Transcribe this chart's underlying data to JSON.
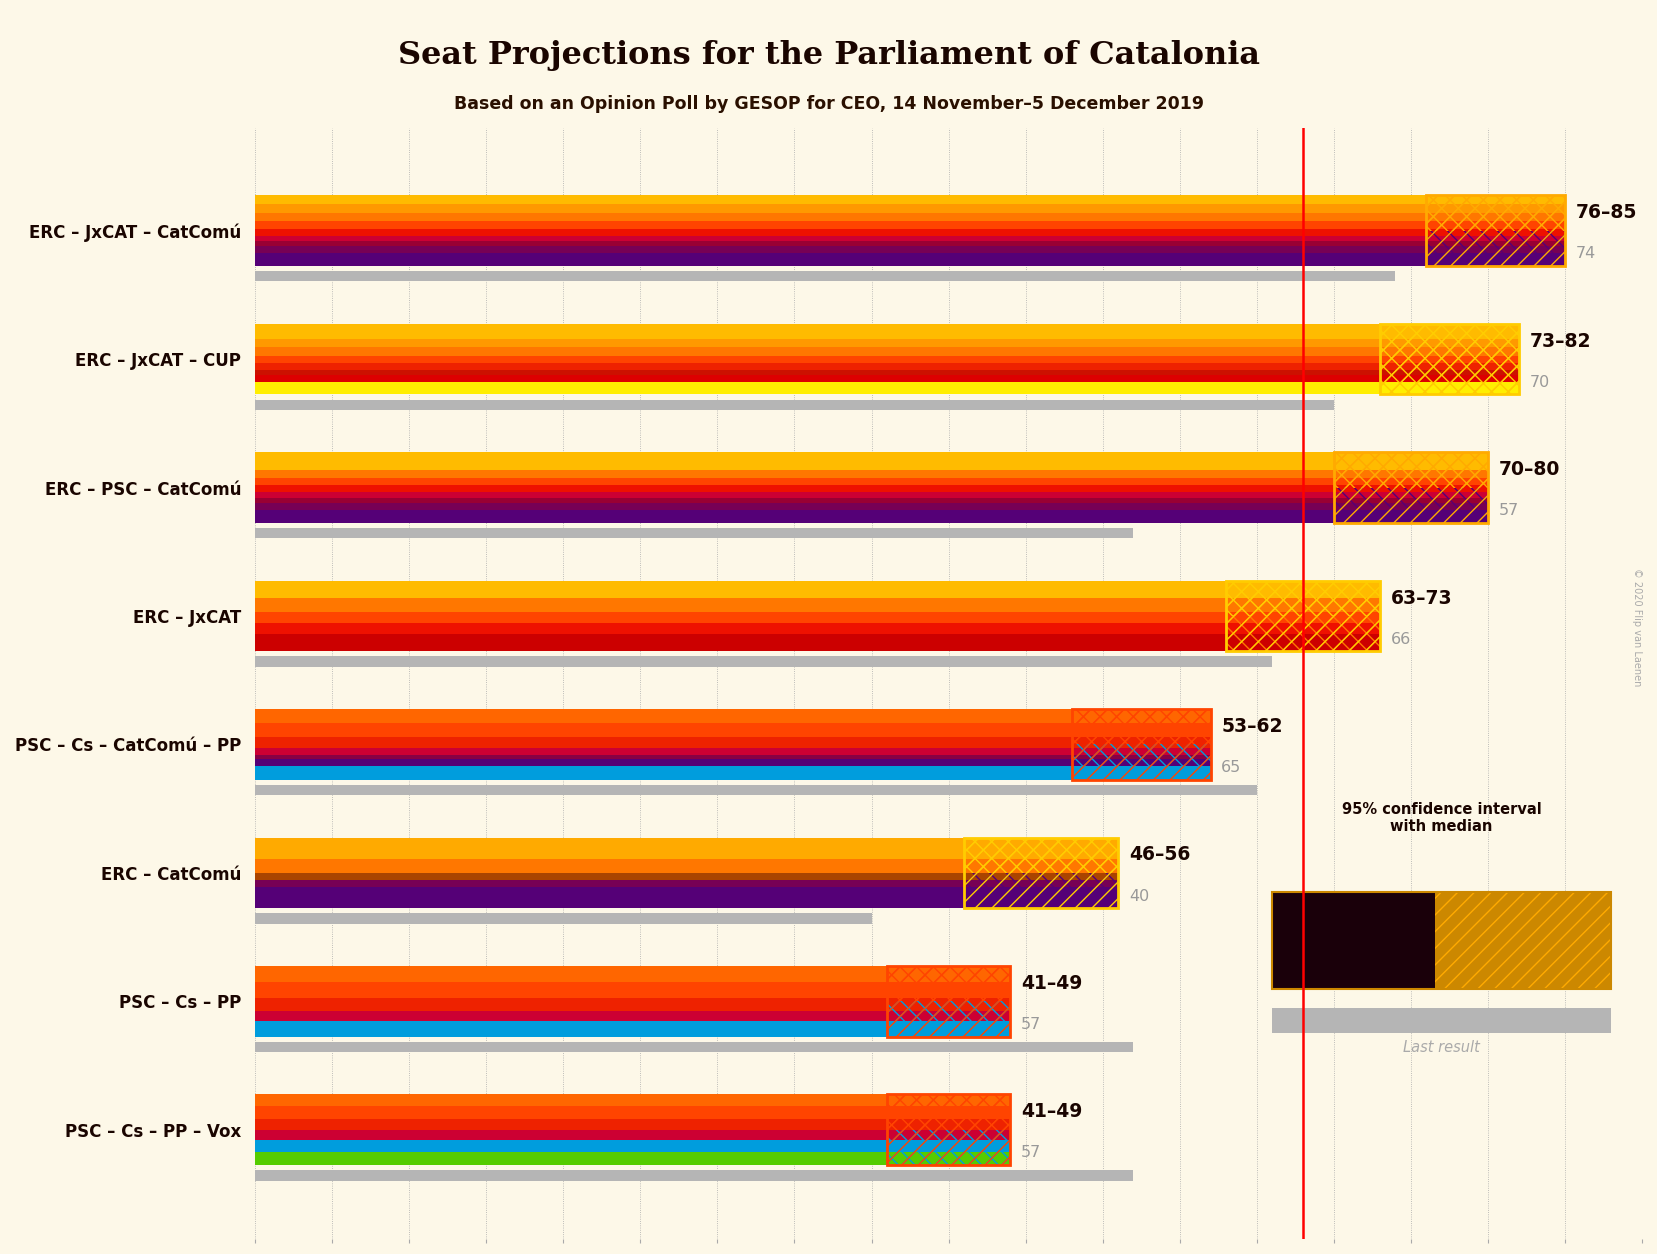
{
  "title": "Seat Projections for the Parliament of Catalonia",
  "subtitle": "Based on an Opinion Poll by GESOP for CEO, 14 November–5 December 2019",
  "copyright": "© 2020 Flip van Laenen",
  "background_color": "#fdf8e8",
  "majority_line": 68,
  "axis_max": 90,
  "coalitions": [
    {
      "label": "ERC – JxCAT – CatComú",
      "low": 76,
      "high": 85,
      "last_result": 74,
      "gradient_colors": [
        "#ffaa00",
        "#ff7700",
        "#ff3300",
        "#cc0033",
        "#880055",
        "#550077",
        "#330066"
      ],
      "ci_top_color": "#ffaa00",
      "ci_bot_color": "#550077",
      "ci_border_color": "#ffaa00"
    },
    {
      "label": "ERC – JxCAT – CUP",
      "low": 73,
      "high": 82,
      "last_result": 70,
      "gradient_colors": [
        "#ffaa00",
        "#ff7700",
        "#ff3300",
        "#dd0000",
        "#ffee00"
      ],
      "ci_top_color": "#ffcc00",
      "ci_bot_color": "#ffcc00",
      "ci_border_color": "#ffcc00"
    },
    {
      "label": "ERC – PSC – CatComú",
      "low": 70,
      "high": 80,
      "last_result": 57,
      "gradient_colors": [
        "#ffaa00",
        "#ff7700",
        "#ff3300",
        "#cc0033",
        "#880055",
        "#550077"
      ],
      "ci_top_color": "#ffaa00",
      "ci_bot_color": "#550077",
      "ci_border_color": "#ffaa00"
    },
    {
      "label": "ERC – JxCAT",
      "low": 63,
      "high": 73,
      "last_result": 66,
      "gradient_colors": [
        "#ffaa00",
        "#ff7700",
        "#ff3300",
        "#dd0000"
      ],
      "ci_top_color": "#ffcc00",
      "ci_bot_color": "#ff7700",
      "ci_border_color": "#ffcc00"
    },
    {
      "label": "PSC – Cs – CatComú – PP",
      "low": 53,
      "high": 62,
      "last_result": 65,
      "gradient_colors": [
        "#ff3300",
        "#cc0033",
        "#880055",
        "#550077",
        "#009ddd"
      ],
      "ci_top_color": "#ff4400",
      "ci_bot_color": "#009ddd",
      "ci_border_color": "#ff4400"
    },
    {
      "label": "ERC – CatComú",
      "low": 46,
      "high": 56,
      "last_result": 40,
      "gradient_colors": [
        "#ffaa00",
        "#ff7700",
        "#880055",
        "#550077",
        "#330066"
      ],
      "ci_top_color": "#ffcc00",
      "ci_bot_color": "#550077",
      "ci_border_color": "#ffcc00"
    },
    {
      "label": "PSC – Cs – PP",
      "low": 41,
      "high": 49,
      "last_result": 57,
      "gradient_colors": [
        "#ff3300",
        "#cc0033",
        "#009ddd"
      ],
      "ci_top_color": "#ff4400",
      "ci_bot_color": "#009ddd",
      "ci_border_color": "#ff4400"
    },
    {
      "label": "PSC – Cs – PP – Vox",
      "low": 41,
      "high": 49,
      "last_result": 57,
      "gradient_colors": [
        "#ff3300",
        "#cc0033",
        "#009ddd",
        "#55cc00"
      ],
      "ci_top_color": "#ff4400",
      "ci_bot_color": "#009ddd",
      "ci_border_color": "#ff4400"
    }
  ]
}
